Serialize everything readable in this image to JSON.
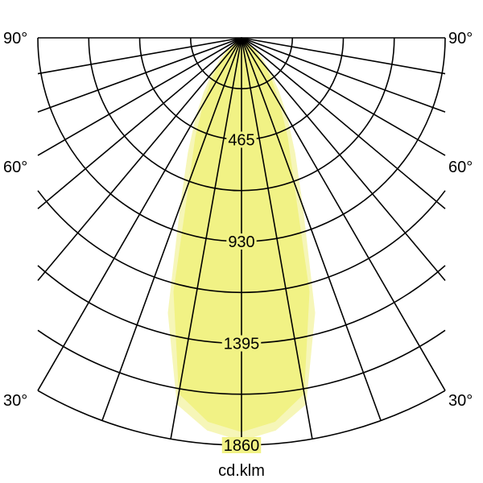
{
  "chart_data": {
    "type": "polar",
    "unit_label": "cd.klm",
    "radial_ticks": [
      465,
      930,
      1395,
      1860
    ],
    "radial_max": 1860,
    "ring_step": 232.5,
    "angle_labels": [
      "90°",
      "60°",
      "30°"
    ],
    "angle_line_step_deg": 10,
    "angles_deg": [
      0,
      5,
      10,
      15,
      20,
      25,
      30,
      35,
      40,
      45,
      50,
      55,
      60,
      65,
      70,
      75,
      80,
      85,
      90
    ],
    "series": [
      {
        "color": "#f6f6b8",
        "values": [
          1840,
          1800,
          1700,
          1300,
          820,
          580,
          420,
          300,
          210,
          140,
          80,
          40,
          15,
          0,
          0,
          0,
          0,
          0,
          0
        ]
      },
      {
        "color": "#f1f285",
        "values": [
          1800,
          1760,
          1650,
          1200,
          700,
          500,
          350,
          250,
          170,
          110,
          60,
          30,
          10,
          0,
          0,
          0,
          0,
          0,
          0
        ]
      }
    ],
    "grid": true
  }
}
